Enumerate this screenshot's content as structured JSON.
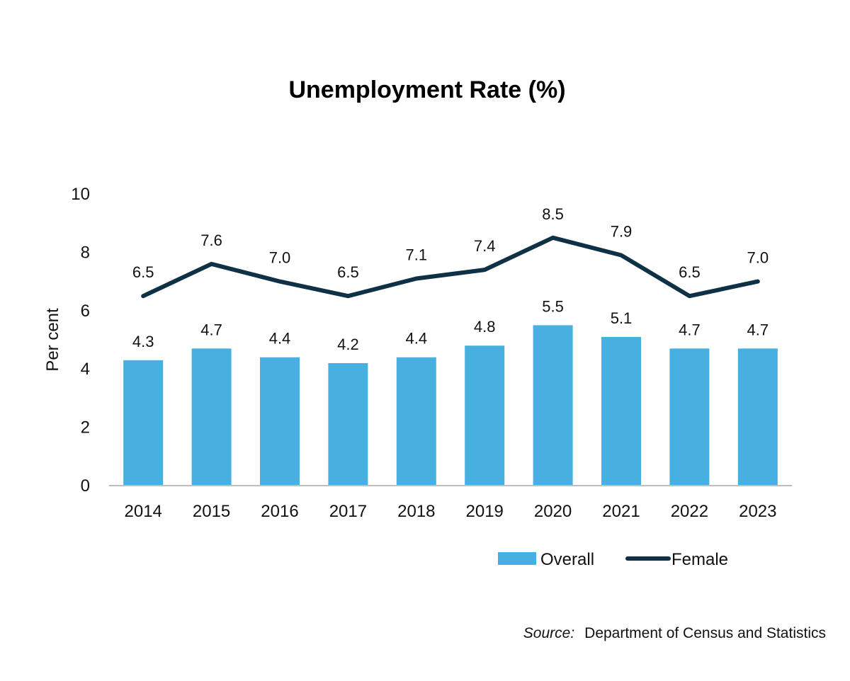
{
  "chart_data": {
    "type": "bar",
    "title": "Unemployment Rate (%)",
    "ylabel": "Per cent",
    "xlabel": "",
    "categories": [
      "2014",
      "2015",
      "2016",
      "2017",
      "2018",
      "2019",
      "2020",
      "2021",
      "2022",
      "2023"
    ],
    "ylim": [
      0,
      10
    ],
    "yticks": [
      "0",
      "2",
      "4",
      "6",
      "8",
      "10"
    ],
    "grid": false,
    "legend_position": "bottom-right",
    "series": [
      {
        "name": "Overall",
        "type": "bar",
        "color": "#48B0E0",
        "values": [
          4.3,
          4.7,
          4.4,
          4.2,
          4.4,
          4.8,
          5.5,
          5.1,
          4.7,
          4.7
        ],
        "labels": [
          "4.3",
          "4.7",
          "4.4",
          "4.2",
          "4.4",
          "4.8",
          "5.5",
          "5.1",
          "4.7",
          "4.7"
        ]
      },
      {
        "name": "Female",
        "type": "line",
        "color": "#0F3146",
        "values": [
          6.5,
          7.6,
          7.0,
          6.5,
          7.1,
          7.4,
          8.5,
          7.9,
          6.5,
          7.0
        ],
        "labels": [
          "6.5",
          "7.6",
          "7.0",
          "6.5",
          "7.1",
          "7.4",
          "8.5",
          "7.9",
          "6.5",
          "7.0"
        ]
      }
    ]
  },
  "source": {
    "key": "Source:",
    "text": "Department of Census and Statistics"
  }
}
